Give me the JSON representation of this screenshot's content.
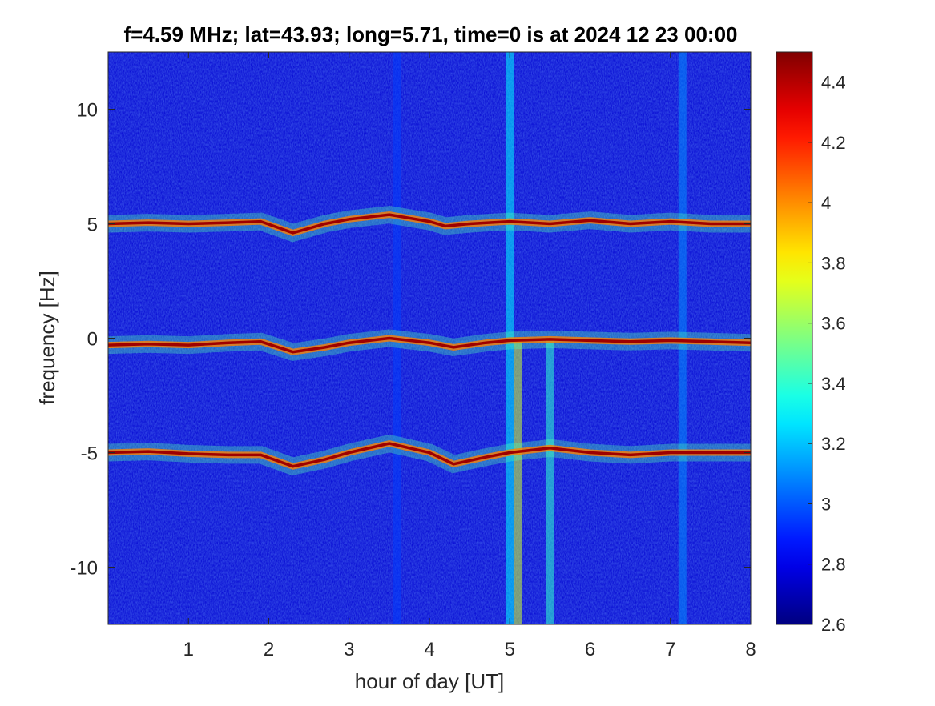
{
  "chart_data": {
    "type": "heatmap",
    "title": "f=4.59 MHz;  lat=43.93; long=5.71, time=0 is at 2024 12 23 00:00",
    "xlabel": "hour of day [UT]",
    "ylabel": "frequency [Hz]",
    "xlim": [
      0,
      8
    ],
    "ylim": [
      -12.5,
      12.5
    ],
    "x_ticks": [
      1,
      2,
      3,
      4,
      5,
      6,
      7,
      8
    ],
    "x_tick_labels": [
      "1",
      "2",
      "3",
      "4",
      "5",
      "6",
      "7",
      "8"
    ],
    "y_ticks": [
      10,
      5,
      0,
      -5,
      -10
    ],
    "y_tick_labels": [
      "10",
      "5",
      "0",
      "-5",
      "-10"
    ],
    "colormap": "jet",
    "colorbar": {
      "clim": [
        2.6,
        4.5
      ],
      "ticks": [
        4.4,
        4.2,
        4.0,
        3.8,
        3.6,
        3.4,
        3.2,
        3.0,
        2.8,
        2.6
      ],
      "tick_labels": [
        "4.4",
        "4.2",
        "4",
        "3.8",
        "3.6",
        "3.4",
        "3.2",
        "3",
        "2.8",
        "2.6"
      ]
    },
    "background_level": 2.75,
    "traces": [
      {
        "name": "upper",
        "points": [
          [
            0,
            5.0
          ],
          [
            0.5,
            5.05
          ],
          [
            1.0,
            5.0
          ],
          [
            1.5,
            5.05
          ],
          [
            1.9,
            5.1
          ],
          [
            2.3,
            4.6
          ],
          [
            2.7,
            5.0
          ],
          [
            3.0,
            5.2
          ],
          [
            3.5,
            5.4
          ],
          [
            4.0,
            5.1
          ],
          [
            4.2,
            4.9
          ],
          [
            4.5,
            5.0
          ],
          [
            5.0,
            5.1
          ],
          [
            5.5,
            5.0
          ],
          [
            6.0,
            5.15
          ],
          [
            6.5,
            5.0
          ],
          [
            7.0,
            5.1
          ],
          [
            7.5,
            5.0
          ],
          [
            8.0,
            5.0
          ]
        ]
      },
      {
        "name": "center",
        "points": [
          [
            0,
            -0.3
          ],
          [
            0.5,
            -0.25
          ],
          [
            1.0,
            -0.3
          ],
          [
            1.5,
            -0.2
          ],
          [
            1.9,
            -0.15
          ],
          [
            2.3,
            -0.6
          ],
          [
            2.7,
            -0.4
          ],
          [
            3.0,
            -0.2
          ],
          [
            3.5,
            0.0
          ],
          [
            4.0,
            -0.2
          ],
          [
            4.3,
            -0.4
          ],
          [
            4.7,
            -0.2
          ],
          [
            5.0,
            -0.1
          ],
          [
            5.5,
            -0.05
          ],
          [
            6.0,
            -0.1
          ],
          [
            6.5,
            -0.15
          ],
          [
            7.0,
            -0.1
          ],
          [
            7.5,
            -0.15
          ],
          [
            8.0,
            -0.2
          ]
        ]
      },
      {
        "name": "lower",
        "points": [
          [
            0,
            -5.0
          ],
          [
            0.5,
            -4.95
          ],
          [
            1.0,
            -5.05
          ],
          [
            1.5,
            -5.1
          ],
          [
            1.9,
            -5.1
          ],
          [
            2.3,
            -5.6
          ],
          [
            2.7,
            -5.3
          ],
          [
            3.0,
            -5.0
          ],
          [
            3.5,
            -4.6
          ],
          [
            4.0,
            -5.0
          ],
          [
            4.3,
            -5.5
          ],
          [
            4.7,
            -5.2
          ],
          [
            5.0,
            -5.0
          ],
          [
            5.5,
            -4.8
          ],
          [
            6.0,
            -5.0
          ],
          [
            6.5,
            -5.1
          ],
          [
            7.0,
            -5.0
          ],
          [
            7.5,
            -5.0
          ],
          [
            8.0,
            -5.0
          ]
        ]
      }
    ],
    "vertical_features": [
      {
        "x": 5.0,
        "from_y": -12.5,
        "to_y": 12.5,
        "level": 3.3
      },
      {
        "x": 5.1,
        "from_y": -12.5,
        "to_y": 0.0,
        "level": 3.7
      },
      {
        "x": 5.5,
        "from_y": -12.5,
        "to_y": 0.0,
        "level": 3.4
      },
      {
        "x": 7.15,
        "from_y": -12.5,
        "to_y": 12.5,
        "level": 3.1
      },
      {
        "x": 3.6,
        "from_y": -12.5,
        "to_y": 12.5,
        "level": 2.95
      }
    ]
  }
}
